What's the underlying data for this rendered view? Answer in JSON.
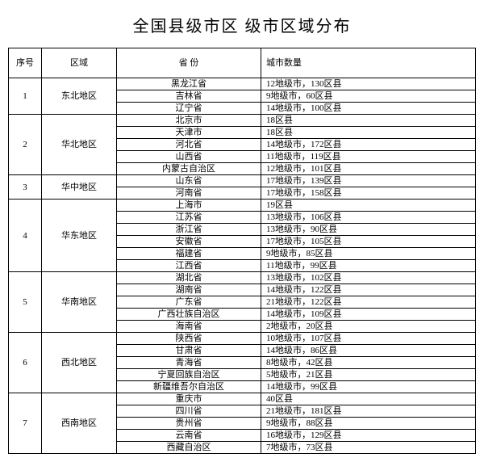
{
  "title": "全国县级市区 级市区域分布",
  "columns": [
    "序号",
    "区域",
    "省 份",
    "城市数量"
  ],
  "groups": [
    {
      "seq": "1",
      "region": "东北地区",
      "rows": [
        {
          "province": "黑龙江省",
          "count": "12地级市，130区县"
        },
        {
          "province": "吉林省",
          "count": "9地级市，60区县"
        },
        {
          "province": "辽宁省",
          "count": "14地级市，100区县"
        }
      ]
    },
    {
      "seq": "2",
      "region": "华北地区",
      "rows": [
        {
          "province": "北京市",
          "count": "18区县"
        },
        {
          "province": "天津市",
          "count": "18区县"
        },
        {
          "province": "河北省",
          "count": "14地级市，172区县"
        },
        {
          "province": "山西省",
          "count": "11地级市，119区县"
        },
        {
          "province": "内蒙古自治区",
          "count": "12地级市，101区县"
        }
      ]
    },
    {
      "seq": "3",
      "region": "华中地区",
      "rows": [
        {
          "province": "山东省",
          "count": "17地级市，139区县"
        },
        {
          "province": "河南省",
          "count": "17地级市，158区县"
        }
      ]
    },
    {
      "seq": "4",
      "region": "华东地区",
      "rows": [
        {
          "province": "上海市",
          "count": "19区县"
        },
        {
          "province": "江苏省",
          "count": "13地级市，106区县"
        },
        {
          "province": "浙江省",
          "count": "13地级市，90区县"
        },
        {
          "province": "安徽省",
          "count": "17地级市，105区县"
        },
        {
          "province": "福建省",
          "count": "9地级市，85区县"
        },
        {
          "province": "江西省",
          "count": "11地级市，99区县"
        }
      ]
    },
    {
      "seq": "5",
      "region": "华南地区",
      "rows": [
        {
          "province": "湖北省",
          "count": "13地级市，102区县"
        },
        {
          "province": "湖南省",
          "count": "14地级市，122区县"
        },
        {
          "province": "广东省",
          "count": "21地级市，122区县"
        },
        {
          "province": "广西壮族自治区",
          "count": "14地级市，109区县"
        },
        {
          "province": "海南省",
          "count": "2地级市，20区县"
        }
      ]
    },
    {
      "seq": "6",
      "region": "西北地区",
      "rows": [
        {
          "province": "陕西省",
          "count": "10地级市，107区县"
        },
        {
          "province": "甘肃省",
          "count": "14地级市，86区县"
        },
        {
          "province": "青海省",
          "count": "8地级市，42区县"
        },
        {
          "province": "宁夏回族自治区",
          "count": "5地级市，21区县"
        },
        {
          "province": "新疆维吾尔自治区",
          "count": "14地级市，99区县"
        }
      ]
    },
    {
      "seq": "7",
      "region": "西南地区",
      "rows": [
        {
          "province": "重庆市",
          "count": "40区县"
        },
        {
          "province": "四川省",
          "count": "21地级市，181区县"
        },
        {
          "province": "贵州省",
          "count": "9地级市，88区县"
        },
        {
          "province": "云南省",
          "count": "16地级市，129区县"
        },
        {
          "province": "西藏自治区",
          "count": "7地级市，73区县"
        }
      ]
    }
  ]
}
